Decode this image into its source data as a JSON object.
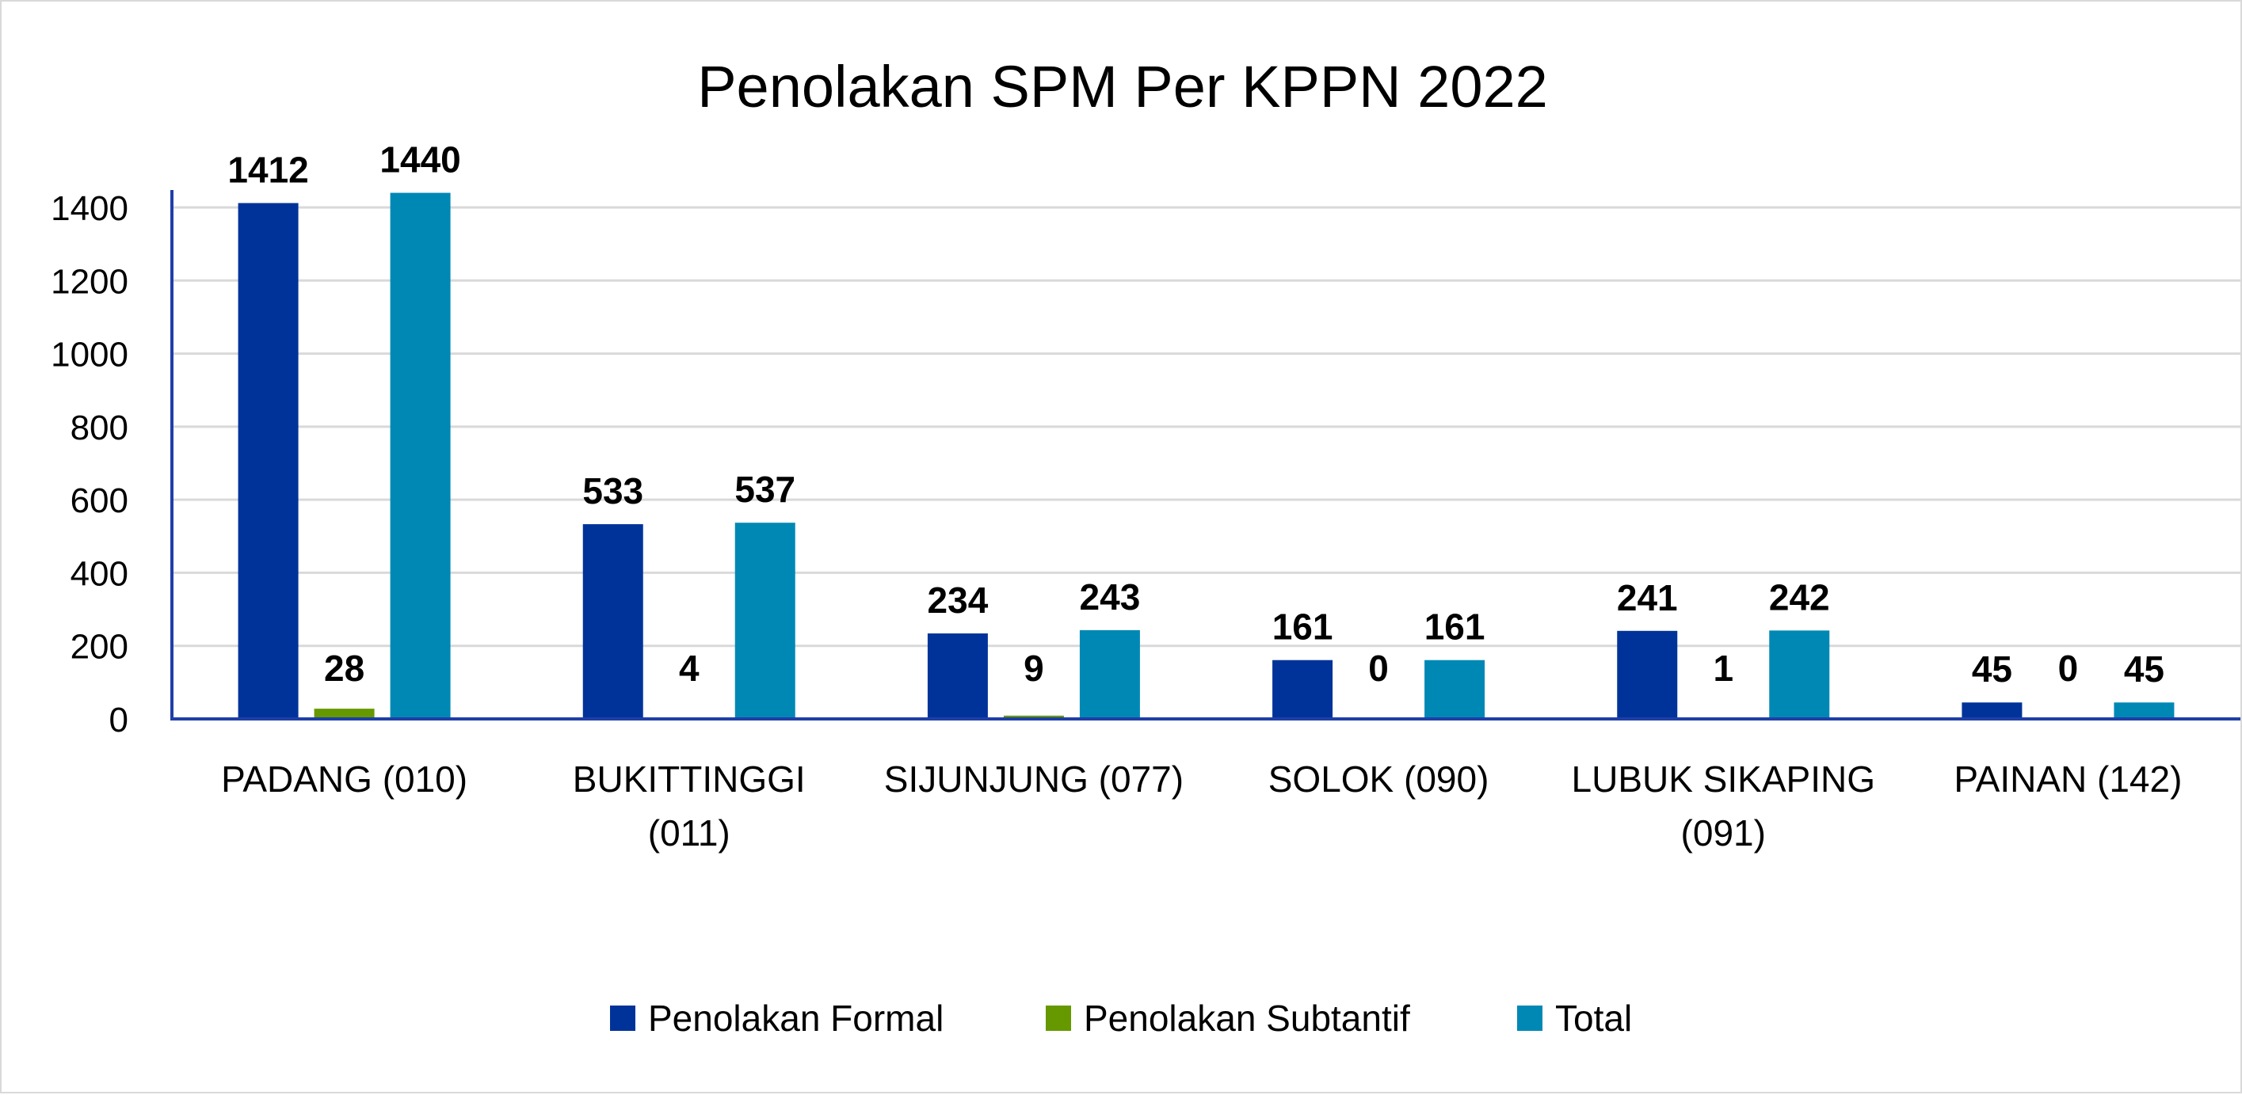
{
  "chart_data": {
    "type": "bar",
    "title": "Penolakan SPM Per KPPN 2022",
    "xlabel": "",
    "ylabel": "",
    "ylim": [
      0,
      1400
    ],
    "yticks": [
      0,
      200,
      400,
      600,
      800,
      1000,
      1200,
      1400
    ],
    "grid": true,
    "legend_position": "bottom",
    "categories": [
      [
        "PADANG (010)"
      ],
      [
        "BUKITTINGGI",
        "(011)"
      ],
      [
        "SIJUNJUNG (077)"
      ],
      [
        "SOLOK (090)"
      ],
      [
        "LUBUK SIKAPING",
        "(091)"
      ],
      [
        "PAINAN (142)"
      ]
    ],
    "series": [
      {
        "name": "Penolakan Formal",
        "color": "#003399",
        "values": [
          1412,
          533,
          234,
          161,
          241,
          45
        ]
      },
      {
        "name": "Penolakan Subtantif",
        "color": "#669900",
        "values": [
          28,
          4,
          9,
          0,
          1,
          0
        ]
      },
      {
        "name": "Total",
        "color": "#0088B5",
        "values": [
          1440,
          537,
          243,
          161,
          242,
          45
        ]
      }
    ]
  }
}
